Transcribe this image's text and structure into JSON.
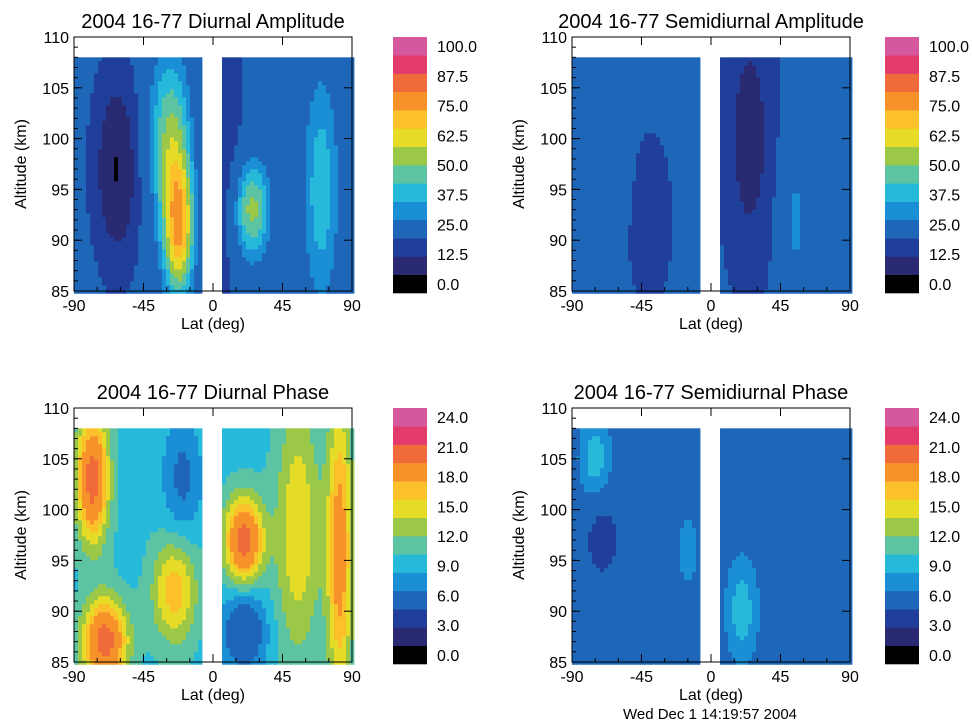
{
  "chart_data": [
    {
      "type": "heatmap",
      "title": "2004 16-77 Diurnal Amplitude",
      "xlabel": "Lat (deg)",
      "ylabel": "Altitude (km)",
      "xticks": [
        "-90",
        "-45",
        "0",
        "45",
        "90"
      ],
      "yticks": [
        "85",
        "90",
        "95",
        "100",
        "105",
        "110"
      ],
      "xlim": [
        -90,
        90
      ],
      "ylim": [
        85,
        110
      ],
      "data_altitude_max": 108,
      "data_gap": [
        -6,
        6
      ],
      "colorbar": {
        "labels": [
          "100.0",
          "87.5",
          "75.0",
          "62.5",
          "50.0",
          "37.5",
          "25.0",
          "12.5",
          "0.0"
        ],
        "range": [
          0,
          100
        ]
      },
      "features": [
        {
          "lat": -22,
          "alt": 91,
          "value": 65,
          "sx": 10,
          "sy": 7
        },
        {
          "lat": -28,
          "alt": 100,
          "value": 50,
          "sx": 14,
          "sy": 9
        },
        {
          "lat": 25,
          "alt": 93,
          "value": 53,
          "sx": 12,
          "sy": 5
        },
        {
          "lat": 70,
          "alt": 95,
          "value": 42,
          "sx": 12,
          "sy": 12
        },
        {
          "lat": -62,
          "alt": 97,
          "value": 6,
          "sx": 16,
          "sy": 10
        },
        {
          "lat": 5,
          "alt": 100,
          "value": 12,
          "sx": 14,
          "sy": 18
        }
      ],
      "base_value": 22
    },
    {
      "type": "heatmap",
      "title": "2004 16-77 Semidiurnal Amplitude",
      "xlabel": "Lat (deg)",
      "ylabel": "Altitude (km)",
      "xticks": [
        "-90",
        "-45",
        "0",
        "45",
        "90"
      ],
      "yticks": [
        "85",
        "90",
        "95",
        "100",
        "105",
        "110"
      ],
      "xlim": [
        -90,
        90
      ],
      "ylim": [
        85,
        110
      ],
      "data_altitude_max": 108,
      "data_gap": [
        -6,
        6
      ],
      "colorbar": {
        "labels": [
          "100.0",
          "87.5",
          "75.0",
          "62.5",
          "50.0",
          "37.5",
          "25.0",
          "12.5",
          "0.0"
        ],
        "range": [
          0,
          100
        ]
      },
      "features": [
        {
          "lat": 55,
          "alt": 92,
          "value": 33,
          "sx": 10,
          "sy": 8
        },
        {
          "lat": -68,
          "alt": 97,
          "value": 27,
          "sx": 12,
          "sy": 6
        },
        {
          "lat": 25,
          "alt": 100,
          "value": 9,
          "sx": 15,
          "sy": 12
        },
        {
          "lat": -40,
          "alt": 92,
          "value": 16,
          "sx": 14,
          "sy": 8
        }
      ],
      "base_value": 20
    },
    {
      "type": "heatmap",
      "title": "2004 16-77 Diurnal Phase",
      "xlabel": "Lat (deg)",
      "ylabel": "Altitude (km)",
      "xticks": [
        "-90",
        "-45",
        "0",
        "45",
        "90"
      ],
      "yticks": [
        "85",
        "90",
        "95",
        "100",
        "105",
        "110"
      ],
      "xlim": [
        -90,
        90
      ],
      "ylim": [
        85,
        110
      ],
      "data_altitude_max": 108,
      "data_gap": [
        -6,
        6
      ],
      "colorbar": {
        "labels": [
          "24.0",
          "21.0",
          "18.0",
          "15.0",
          "12.0",
          "9.0",
          "6.0",
          "3.0",
          "0.0"
        ],
        "range": [
          0,
          24
        ]
      },
      "features": [
        {
          "lat": -78,
          "alt": 103,
          "value": 21,
          "sx": 10,
          "sy": 6
        },
        {
          "lat": -70,
          "alt": 87,
          "value": 21,
          "sx": 14,
          "sy": 4
        },
        {
          "lat": -25,
          "alt": 92,
          "value": 16,
          "sx": 14,
          "sy": 5
        },
        {
          "lat": -20,
          "alt": 103,
          "value": 7,
          "sx": 12,
          "sy": 6
        },
        {
          "lat": 20,
          "alt": 97,
          "value": 21,
          "sx": 12,
          "sy": 4
        },
        {
          "lat": 20,
          "alt": 88,
          "value": 5,
          "sx": 14,
          "sy": 4
        },
        {
          "lat": 55,
          "alt": 98,
          "value": 15,
          "sx": 14,
          "sy": 12
        },
        {
          "lat": 82,
          "alt": 96,
          "value": 18,
          "sx": 8,
          "sy": 14
        }
      ],
      "base_value": 10
    },
    {
      "type": "heatmap",
      "title": "2004 16-77 Semidiurnal Phase",
      "xlabel": "Lat (deg)",
      "ylabel": "Altitude (km)",
      "xticks": [
        "-90",
        "-45",
        "0",
        "45",
        "90"
      ],
      "yticks": [
        "85",
        "90",
        "95",
        "100",
        "105",
        "110"
      ],
      "xlim": [
        -90,
        90
      ],
      "ylim": [
        85,
        110
      ],
      "data_altitude_max": 108,
      "data_gap": [
        -6,
        6
      ],
      "colorbar": {
        "labels": [
          "24.0",
          "21.0",
          "18.0",
          "15.0",
          "12.0",
          "9.0",
          "6.0",
          "3.0",
          "0.0"
        ],
        "range": [
          0,
          24
        ]
      },
      "features": [
        {
          "lat": -75,
          "alt": 105,
          "value": 10,
          "sx": 10,
          "sy": 4
        },
        {
          "lat": -70,
          "alt": 97,
          "value": 3,
          "sx": 12,
          "sy": 4
        },
        {
          "lat": -15,
          "alt": 96,
          "value": 9,
          "sx": 6,
          "sy": 3
        },
        {
          "lat": 20,
          "alt": 90,
          "value": 10,
          "sx": 10,
          "sy": 5
        },
        {
          "lat": 60,
          "alt": 100,
          "value": 7,
          "sx": 20,
          "sy": 8
        }
      ],
      "base_value": 6.5
    }
  ],
  "timestamp": "Wed Dec  1 14:19:57 2004",
  "colors": {
    "palette": [
      "#000000",
      "#2a2a72",
      "#1f3f9a",
      "#1e66b8",
      "#1a8fd6",
      "#27b9d9",
      "#5cc4a3",
      "#9cc848",
      "#e6dc28",
      "#fbc02a",
      "#f7922a",
      "#ef6b3a",
      "#e33b6b",
      "#d5579d"
    ]
  }
}
